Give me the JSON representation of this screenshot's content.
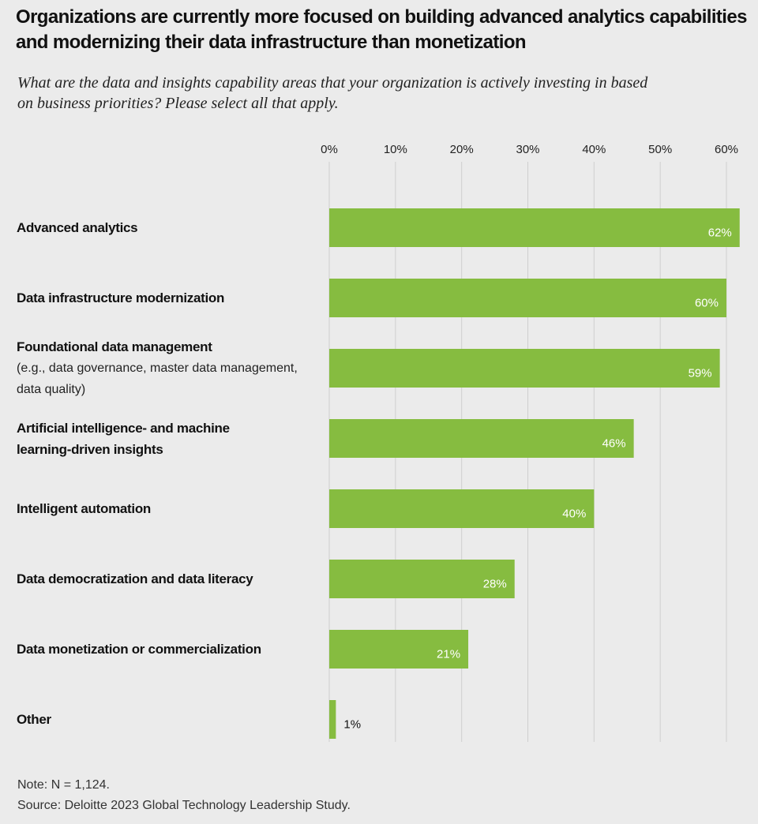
{
  "chart_data": {
    "type": "bar",
    "orientation": "horizontal",
    "title": "Organizations are currently more focused on building advanced analytics capabilities and modernizing their data infrastructure than monetization",
    "subtitle": "What are the data and insights capability areas that your organization is actively investing in based on business priorities? Please select all that apply.",
    "categories": [
      "Advanced analytics",
      "Data infrastructure modernization",
      "Foundational data management",
      "Artificial intelligence- and machine learning-driven insights",
      "Intelligent automation",
      "Data democratization and data literacy",
      "Data monetization or commercialization",
      "Other"
    ],
    "category_details": {
      "2": "(e.g., data governance, master data management, data quality)"
    },
    "values": [
      62,
      60,
      59,
      46,
      40,
      28,
      21,
      1
    ],
    "value_labels": [
      "62%",
      "60%",
      "59%",
      "46%",
      "40%",
      "28%",
      "21%",
      "1%"
    ],
    "color": "#86bc40",
    "xlim": [
      0,
      60
    ],
    "xticks": [
      {
        "value": 0,
        "label": "0%"
      },
      {
        "value": 10,
        "label": "10%"
      },
      {
        "value": 20,
        "label": "20%"
      },
      {
        "value": 30,
        "label": "30%"
      },
      {
        "value": 40,
        "label": "40%"
      },
      {
        "value": 50,
        "label": "50%"
      },
      {
        "value": 60,
        "label": "60%"
      }
    ],
    "grid": true,
    "note": "Note: N = 1,124.",
    "source": "Source: Deloitte 2023 Global Technology Leadership Study."
  }
}
